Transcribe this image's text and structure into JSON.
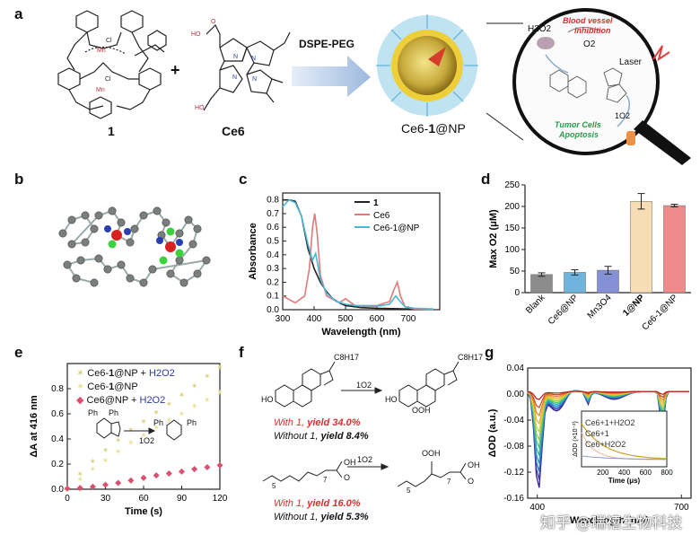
{
  "panels": {
    "a": "a",
    "b": "b",
    "c": "c",
    "d": "d",
    "e": "e",
    "f": "f",
    "g": "g"
  },
  "panel_a": {
    "compound1_label": "1",
    "plus": "+",
    "ce6_label": "Ce6",
    "arrow_label": "DSPE-PEG",
    "nanoparticle_label_prefix": "Ce6-",
    "nanoparticle_label_bold": "1",
    "nanoparticle_label_suffix": "@NP",
    "inset": {
      "h2o2": "H2O2",
      "bv1": "Blood vessel",
      "bv2": "inhibition",
      "o2": "O2",
      "laser": "Laser",
      "singlet": "1O2",
      "tc1": "Tumor Cells",
      "tc2": "Apoptosis"
    },
    "mol_labels": [
      "Mn",
      "Mn",
      "Cl",
      "Cl"
    ]
  },
  "panel_c": {
    "chart_data": {
      "type": "line",
      "xlabel": "Wavelength (nm)",
      "ylabel": "Absorbance",
      "xlim": [
        300,
        800
      ],
      "ylim": [
        0.0,
        0.85
      ],
      "xticks": [
        "300",
        "400",
        "500",
        "600",
        "700"
      ],
      "yticks": [
        "0.0",
        "0.1",
        "0.2",
        "0.3",
        "0.4",
        "0.5",
        "0.6",
        "0.7",
        "0.8"
      ],
      "legend_position": "top-right",
      "series": [
        {
          "name": "1",
          "color": "#222222",
          "x": [
            300,
            320,
            340,
            360,
            380,
            400,
            420,
            440,
            460,
            480,
            500,
            550,
            600,
            650,
            700,
            750,
            780
          ],
          "y": [
            0.8,
            0.8,
            0.79,
            0.68,
            0.45,
            0.3,
            0.2,
            0.13,
            0.08,
            0.05,
            0.03,
            0.015,
            0.01,
            0.008,
            0.005,
            0.004,
            0.004
          ]
        },
        {
          "name": "Ce6",
          "color": "#e07a78",
          "x": [
            300,
            340,
            370,
            385,
            395,
            402,
            410,
            420,
            440,
            480,
            500,
            530,
            600,
            640,
            655,
            665,
            675,
            690,
            720,
            780
          ],
          "y": [
            0.1,
            0.05,
            0.1,
            0.3,
            0.6,
            0.7,
            0.55,
            0.25,
            0.1,
            0.05,
            0.08,
            0.03,
            0.03,
            0.06,
            0.15,
            0.2,
            0.1,
            0.02,
            0.005,
            0.003
          ]
        },
        {
          "name": "Ce6-1@NP",
          "color": "#4ab7d6",
          "x": [
            300,
            320,
            340,
            360,
            380,
            395,
            405,
            420,
            440,
            470,
            500,
            550,
            600,
            640,
            660,
            670,
            690,
            720,
            780
          ],
          "y": [
            0.75,
            0.8,
            0.78,
            0.68,
            0.48,
            0.36,
            0.41,
            0.22,
            0.12,
            0.06,
            0.04,
            0.025,
            0.025,
            0.04,
            0.1,
            0.07,
            0.02,
            0.01,
            0.005
          ]
        }
      ]
    }
  },
  "panel_d": {
    "chart_data": {
      "type": "bar",
      "ylabel": "Max O2 (μM)",
      "ylim": [
        0,
        250
      ],
      "yticks": [
        "0",
        "50",
        "100",
        "150",
        "200",
        "250"
      ],
      "categories": [
        "Blank",
        "Ce6@NP",
        "Mn3O4",
        "1@NP",
        "Ce6-1@NP"
      ],
      "values": [
        42,
        47,
        52,
        212,
        202
      ],
      "errors": [
        4,
        6,
        9,
        18,
        3
      ],
      "colors": [
        "#8c8c8c",
        "#6fb4dd",
        "#8591d6",
        "#f7ddb5",
        "#f08a8a"
      ]
    }
  },
  "panel_e": {
    "chart_data": {
      "type": "scatter",
      "xlabel": "Time (s)",
      "ylabel": "ΔA at 416 nm",
      "xlim": [
        0,
        120
      ],
      "ylim": [
        0,
        1.0
      ],
      "xticks": [
        "0",
        "30",
        "60",
        "90",
        "120"
      ],
      "yticks": [
        "0.0",
        "0.2",
        "0.4",
        "0.6",
        "0.8"
      ],
      "series": [
        {
          "name": "Ce6-1@NP + H2O2",
          "color": "#d8cf7a",
          "marker": "star",
          "x": [
            0,
            10,
            20,
            30,
            40,
            50,
            60,
            70,
            80,
            90,
            100,
            110,
            120
          ],
          "y": [
            0,
            0.12,
            0.22,
            0.31,
            0.39,
            0.47,
            0.54,
            0.61,
            0.68,
            0.75,
            0.82,
            0.9,
            0.97
          ]
        },
        {
          "name": "Ce6-1@NP",
          "color": "#e8df8e",
          "marker": "star",
          "x": [
            0,
            10,
            20,
            30,
            40,
            50,
            60,
            70,
            80,
            90,
            100,
            110,
            120
          ],
          "y": [
            0,
            0.08,
            0.16,
            0.23,
            0.3,
            0.37,
            0.43,
            0.49,
            0.55,
            0.6,
            0.66,
            0.71,
            0.77
          ]
        },
        {
          "name": "Ce6@NP + H2O2",
          "color": "#d94f6e",
          "marker": "diamond",
          "x": [
            0,
            10,
            20,
            30,
            40,
            50,
            60,
            70,
            80,
            90,
            100,
            110,
            120
          ],
          "y": [
            0.005,
            0.01,
            0.02,
            0.035,
            0.05,
            0.07,
            0.09,
            0.11,
            0.125,
            0.14,
            0.16,
            0.175,
            0.19
          ]
        }
      ]
    },
    "legend": {
      "s1_prefix": "Ce6-",
      "s1_bold": "1",
      "s1_mid": "@NP + ",
      "s1_h2o2": "H2O2",
      "s2_prefix": "Ce6-",
      "s2_bold": "1",
      "s2_mid": "@NP",
      "s3_prefix": "Ce6@NP + ",
      "s3_h2o2": "H2O2"
    },
    "inset_reaction": {
      "ph1": "Ph",
      "ph2": "Ph",
      "ph3": "Ph",
      "ph4": "Ph",
      "o2": "1O2"
    }
  },
  "panel_f": {
    "sub1": "C8H17",
    "sub2": "C8H17",
    "ho1": "HO",
    "ho2": "HO",
    "ooh": "OOH",
    "reagent1": "1O2",
    "reagent2": "1O2",
    "r1_with": "With 1,",
    "r1_with_yield": "yield 34.0%",
    "r1_without": "Without 1,",
    "r1_without_yield": "yield 8.4%",
    "r2_with": "With 1,",
    "r2_with_yield": "yield 16.0%",
    "r2_without": "Without 1,",
    "r2_without_yield": "yield 5.3%",
    "chain_sub1": "5",
    "chain_sub2": "7",
    "chain_sub3": "5",
    "chain_sub4": "7",
    "oh1": "OH",
    "oh2": "OH",
    "o1": "O",
    "o2": "O",
    "ooh2": "OOH"
  },
  "panel_g": {
    "chart_data": {
      "type": "line",
      "xlabel": "Wavelength (nm)",
      "ylabel": "ΔOD (a.u.)",
      "ylim": [
        -0.16,
        0.04
      ],
      "yticks": [
        "0.04",
        "0.00",
        "-0.04",
        "-0.08",
        "-0.12",
        "-0.16"
      ],
      "xticks": [
        "400",
        "700"
      ],
      "note": "transient absorption spectra, many time slices"
    },
    "inset": {
      "ylabel": "ΔOD (×10⁻²)",
      "xlabel": "Time (μs)",
      "xticks": [
        "200",
        "400",
        "600",
        "800"
      ],
      "legend": [
        "Ce6+1+H2O2",
        "Ce6+1",
        "Ce6+H2O2"
      ]
    }
  },
  "watermark": "知乎 @瑞禧生物科技"
}
